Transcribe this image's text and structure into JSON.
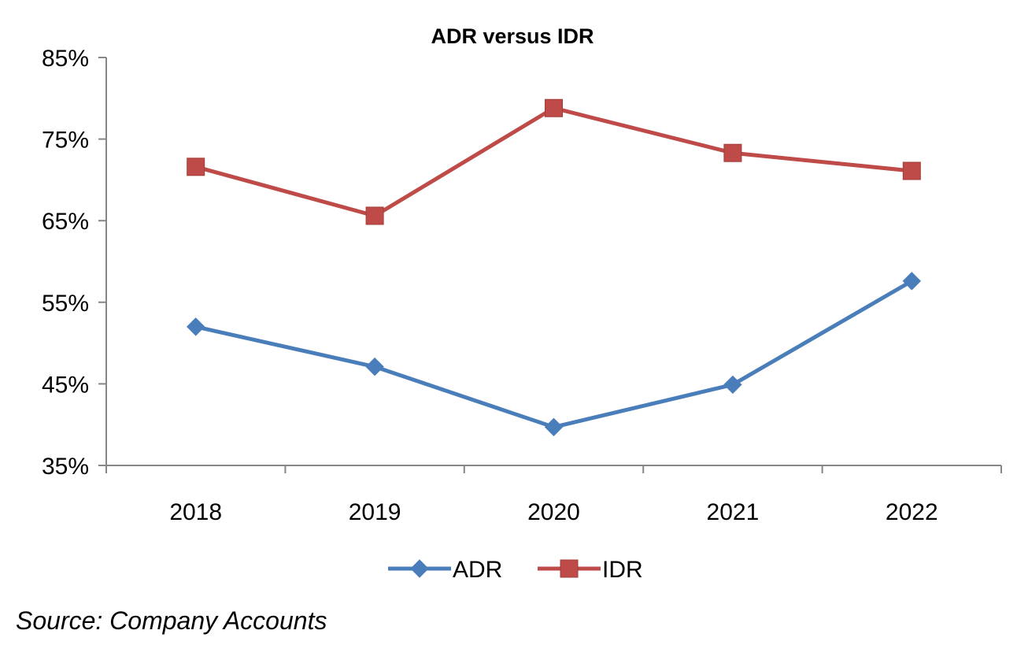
{
  "chart_data": {
    "type": "line",
    "title": "ADR versus IDR",
    "xlabel": "",
    "ylabel": "",
    "categories": [
      "2018",
      "2019",
      "2020",
      "2021",
      "2022"
    ],
    "ylim": [
      35,
      85
    ],
    "yticks": [
      35,
      45,
      55,
      65,
      75,
      85
    ],
    "ytick_labels": [
      "35%",
      "45%",
      "55%",
      "65%",
      "75%",
      "85%"
    ],
    "grid": false,
    "legend_position": "bottom",
    "series": [
      {
        "name": "ADR",
        "color": "#4a7ebb",
        "marker": "diamond",
        "values": [
          52.0,
          47.1,
          39.7,
          44.9,
          57.6
        ]
      },
      {
        "name": "IDR",
        "color": "#be4b48",
        "marker": "square",
        "values": [
          71.6,
          65.6,
          78.8,
          73.3,
          71.1
        ]
      }
    ]
  },
  "source_note": "Source: Company Accounts"
}
